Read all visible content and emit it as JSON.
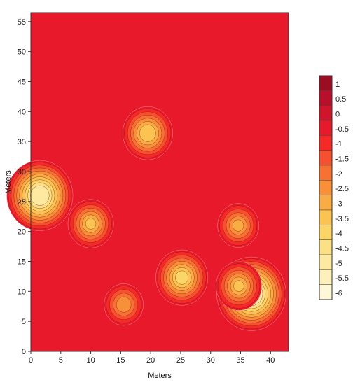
{
  "chart_data": {
    "type": "heatmap",
    "subtype": "filled-contour",
    "xlabel": "Meters",
    "ylabel": "Meters",
    "xlim": [
      0,
      43
    ],
    "ylim": [
      0,
      56.5
    ],
    "xticks": [
      0,
      5,
      10,
      15,
      20,
      25,
      30,
      35,
      40
    ],
    "yticks": [
      0,
      5,
      10,
      15,
      20,
      25,
      30,
      35,
      40,
      45,
      50,
      55
    ],
    "grid": false,
    "legend": "right",
    "levels": [
      1,
      0.5,
      0,
      -0.5,
      -1,
      -1.5,
      -2,
      -2.5,
      -3,
      -3.5,
      -4,
      -4.5,
      -5,
      -5.5,
      -6
    ],
    "level_labels": [
      "1",
      "0.5",
      "0",
      "-0.5",
      "-1",
      "-1.5",
      "-2",
      "-2.5",
      "-3",
      "-3.5",
      "-4",
      "-4.5",
      "-5",
      "-5.5",
      "-6"
    ],
    "level_colors": [
      "#9b0e22",
      "#b8102a",
      "#d0142a",
      "#e8192b",
      "#f52a26",
      "#f6502e",
      "#f77132",
      "#f8903a",
      "#f9ac44",
      "#fac352",
      "#fbd566",
      "#fce184",
      "#fde9a0",
      "#fdf0bb",
      "#fef7d8"
    ],
    "background_value": -0.7,
    "features": [
      {
        "x": 19.5,
        "y": 36.4,
        "min": -4.0
      },
      {
        "x": 1.5,
        "y": 26.0,
        "min": -5.5
      },
      {
        "x": 10.0,
        "y": 21.3,
        "min": -3.6
      },
      {
        "x": 25.2,
        "y": 12.3,
        "min": -4.2
      },
      {
        "x": 34.6,
        "y": 21.0,
        "min": -3.2
      },
      {
        "x": 15.5,
        "y": 7.8,
        "min": -3.0
      },
      {
        "x": 36.8,
        "y": 9.6,
        "min": -5.8
      },
      {
        "x": 34.7,
        "y": 10.9,
        "min": -3.6
      }
    ]
  }
}
